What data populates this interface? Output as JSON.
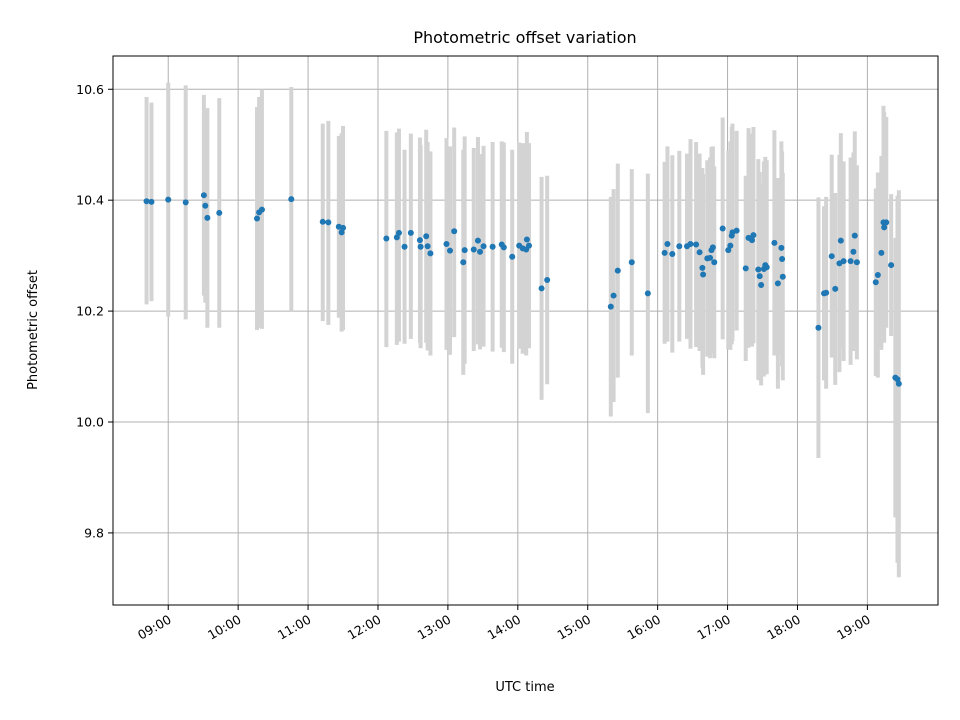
{
  "chart_data": {
    "type": "scatter",
    "title": "Photometric offset variation",
    "xlabel": "UTC time",
    "ylabel": "Photometric offset",
    "xlim_hours": [
      8.21,
      20.01
    ],
    "ylim": [
      9.67,
      10.66
    ],
    "x_ticks": [
      {
        "h": 9,
        "label": "09:00"
      },
      {
        "h": 10,
        "label": "10:00"
      },
      {
        "h": 11,
        "label": "11:00"
      },
      {
        "h": 12,
        "label": "12:00"
      },
      {
        "h": 13,
        "label": "13:00"
      },
      {
        "h": 14,
        "label": "14:00"
      },
      {
        "h": 15,
        "label": "15:00"
      },
      {
        "h": 16,
        "label": "16:00"
      },
      {
        "h": 17,
        "label": "17:00"
      },
      {
        "h": 18,
        "label": "18:00"
      },
      {
        "h": 19,
        "label": "19:00"
      }
    ],
    "y_ticks": [
      {
        "v": 9.8,
        "label": "9.8"
      },
      {
        "v": 10.0,
        "label": "10.0"
      },
      {
        "v": 10.2,
        "label": "10.2"
      },
      {
        "v": 10.4,
        "label": "10.4"
      },
      {
        "v": 10.6,
        "label": "10.6"
      }
    ],
    "grid": true,
    "colors": {
      "point": "#1f77b4",
      "errorbar": "#d3d3d3",
      "grid": "#b0b0b0"
    },
    "points": [
      {
        "h": 8.69,
        "y": 10.398,
        "lo": 10.212,
        "hi": 10.586
      },
      {
        "h": 8.76,
        "y": 10.397,
        "lo": 10.218,
        "hi": 10.576
      },
      {
        "h": 9.0,
        "y": 10.401,
        "lo": 10.19,
        "hi": 10.612
      },
      {
        "h": 9.25,
        "y": 10.396,
        "lo": 10.185,
        "hi": 10.607
      },
      {
        "h": 9.51,
        "y": 10.409,
        "lo": 10.228,
        "hi": 10.59
      },
      {
        "h": 9.53,
        "y": 10.39,
        "lo": 10.215,
        "hi": 10.565
      },
      {
        "h": 9.56,
        "y": 10.368,
        "lo": 10.17,
        "hi": 10.566
      },
      {
        "h": 9.73,
        "y": 10.377,
        "lo": 10.17,
        "hi": 10.584
      },
      {
        "h": 10.27,
        "y": 10.367,
        "lo": 10.166,
        "hi": 10.568
      },
      {
        "h": 10.3,
        "y": 10.378,
        "lo": 10.17,
        "hi": 10.586
      },
      {
        "h": 10.34,
        "y": 10.383,
        "lo": 10.168,
        "hi": 10.6
      },
      {
        "h": 10.76,
        "y": 10.402,
        "lo": 10.2,
        "hi": 10.604
      },
      {
        "h": 11.21,
        "y": 10.361,
        "lo": 10.182,
        "hi": 10.538
      },
      {
        "h": 11.29,
        "y": 10.36,
        "lo": 10.175,
        "hi": 10.543
      },
      {
        "h": 11.44,
        "y": 10.352,
        "lo": 10.188,
        "hi": 10.516
      },
      {
        "h": 11.48,
        "y": 10.342,
        "lo": 10.163,
        "hi": 10.521
      },
      {
        "h": 11.5,
        "y": 10.35,
        "lo": 10.166,
        "hi": 10.534
      },
      {
        "h": 12.12,
        "y": 10.331,
        "lo": 10.135,
        "hi": 10.525
      },
      {
        "h": 12.27,
        "y": 10.333,
        "lo": 10.139,
        "hi": 10.522
      },
      {
        "h": 12.3,
        "y": 10.341,
        "lo": 10.145,
        "hi": 10.529
      },
      {
        "h": 12.38,
        "y": 10.316,
        "lo": 10.141,
        "hi": 10.491
      },
      {
        "h": 12.47,
        "y": 10.341,
        "lo": 10.15,
        "hi": 10.52
      },
      {
        "h": 12.6,
        "y": 10.328,
        "lo": 10.143,
        "hi": 10.513
      },
      {
        "h": 12.61,
        "y": 10.316,
        "lo": 10.133,
        "hi": 10.499
      },
      {
        "h": 12.69,
        "y": 10.335,
        "lo": 10.143,
        "hi": 10.527
      },
      {
        "h": 12.71,
        "y": 10.317,
        "lo": 10.129,
        "hi": 10.505
      },
      {
        "h": 12.75,
        "y": 10.304,
        "lo": 10.12,
        "hi": 10.488
      },
      {
        "h": 12.98,
        "y": 10.321,
        "lo": 10.13,
        "hi": 10.512
      },
      {
        "h": 13.03,
        "y": 10.309,
        "lo": 10.121,
        "hi": 10.497
      },
      {
        "h": 13.09,
        "y": 10.344,
        "lo": 10.153,
        "hi": 10.531
      },
      {
        "h": 13.22,
        "y": 10.288,
        "lo": 10.085,
        "hi": 10.491
      },
      {
        "h": 13.24,
        "y": 10.31,
        "lo": 10.105,
        "hi": 10.515
      },
      {
        "h": 13.37,
        "y": 10.311,
        "lo": 10.128,
        "hi": 10.494
      },
      {
        "h": 13.43,
        "y": 10.327,
        "lo": 10.14,
        "hi": 10.514
      },
      {
        "h": 13.46,
        "y": 10.307,
        "lo": 10.131,
        "hi": 10.483
      },
      {
        "h": 13.51,
        "y": 10.317,
        "lo": 10.136,
        "hi": 10.498
      },
      {
        "h": 13.64,
        "y": 10.316,
        "lo": 10.127,
        "hi": 10.505
      },
      {
        "h": 13.77,
        "y": 10.32,
        "lo": 10.134,
        "hi": 10.506
      },
      {
        "h": 13.8,
        "y": 10.315,
        "lo": 10.126,
        "hi": 10.504
      },
      {
        "h": 13.92,
        "y": 10.298,
        "lo": 10.105,
        "hi": 10.491
      },
      {
        "h": 14.02,
        "y": 10.318,
        "lo": 10.132,
        "hi": 10.504
      },
      {
        "h": 14.07,
        "y": 10.313,
        "lo": 10.123,
        "hi": 10.503
      },
      {
        "h": 14.12,
        "y": 10.311,
        "lo": 10.12,
        "hi": 10.502
      },
      {
        "h": 14.13,
        "y": 10.329,
        "lo": 10.135,
        "hi": 10.523
      },
      {
        "h": 14.16,
        "y": 10.318,
        "lo": 10.133,
        "hi": 10.503
      },
      {
        "h": 14.34,
        "y": 10.241,
        "lo": 10.04,
        "hi": 10.442
      },
      {
        "h": 14.42,
        "y": 10.256,
        "lo": 10.068,
        "hi": 10.444
      },
      {
        "h": 15.33,
        "y": 10.208,
        "lo": 10.01,
        "hi": 10.406
      },
      {
        "h": 15.37,
        "y": 10.228,
        "lo": 10.036,
        "hi": 10.42
      },
      {
        "h": 15.43,
        "y": 10.273,
        "lo": 10.08,
        "hi": 10.466
      },
      {
        "h": 15.63,
        "y": 10.288,
        "lo": 10.12,
        "hi": 10.456
      },
      {
        "h": 15.86,
        "y": 10.232,
        "lo": 10.016,
        "hi": 10.448
      },
      {
        "h": 16.1,
        "y": 10.305,
        "lo": 10.141,
        "hi": 10.469
      },
      {
        "h": 16.14,
        "y": 10.321,
        "lo": 10.145,
        "hi": 10.497
      },
      {
        "h": 16.21,
        "y": 10.303,
        "lo": 10.125,
        "hi": 10.481
      },
      {
        "h": 16.31,
        "y": 10.317,
        "lo": 10.145,
        "hi": 10.489
      },
      {
        "h": 16.42,
        "y": 10.317,
        "lo": 10.15,
        "hi": 10.484
      },
      {
        "h": 16.47,
        "y": 10.321,
        "lo": 10.132,
        "hi": 10.51
      },
      {
        "h": 16.55,
        "y": 10.32,
        "lo": 10.135,
        "hi": 10.505
      },
      {
        "h": 16.6,
        "y": 10.306,
        "lo": 10.128,
        "hi": 10.484
      },
      {
        "h": 16.64,
        "y": 10.278,
        "lo": 10.098,
        "hi": 10.458
      },
      {
        "h": 16.65,
        "y": 10.266,
        "lo": 10.085,
        "hi": 10.447
      },
      {
        "h": 16.71,
        "y": 10.295,
        "lo": 10.118,
        "hi": 10.472
      },
      {
        "h": 16.75,
        "y": 10.296,
        "lo": 10.115,
        "hi": 10.477
      },
      {
        "h": 16.77,
        "y": 10.31,
        "lo": 10.124,
        "hi": 10.496
      },
      {
        "h": 16.79,
        "y": 10.315,
        "lo": 10.133,
        "hi": 10.497
      },
      {
        "h": 16.81,
        "y": 10.288,
        "lo": 10.115,
        "hi": 10.461
      },
      {
        "h": 16.93,
        "y": 10.349,
        "lo": 10.149,
        "hi": 10.549
      },
      {
        "h": 17.01,
        "y": 10.31,
        "lo": 10.131,
        "hi": 10.489
      },
      {
        "h": 17.04,
        "y": 10.318,
        "lo": 10.13,
        "hi": 10.506
      },
      {
        "h": 17.06,
        "y": 10.336,
        "lo": 10.14,
        "hi": 10.532
      },
      {
        "h": 17.07,
        "y": 10.342,
        "lo": 10.146,
        "hi": 10.538
      },
      {
        "h": 17.13,
        "y": 10.345,
        "lo": 10.165,
        "hi": 10.525
      },
      {
        "h": 17.26,
        "y": 10.277,
        "lo": 10.11,
        "hi": 10.444
      },
      {
        "h": 17.3,
        "y": 10.332,
        "lo": 10.134,
        "hi": 10.53
      },
      {
        "h": 17.35,
        "y": 10.328,
        "lo": 10.136,
        "hi": 10.52
      },
      {
        "h": 17.37,
        "y": 10.337,
        "lo": 10.142,
        "hi": 10.532
      },
      {
        "h": 17.44,
        "y": 10.275,
        "lo": 10.076,
        "hi": 10.474
      },
      {
        "h": 17.46,
        "y": 10.263,
        "lo": 10.075,
        "hi": 10.451
      },
      {
        "h": 17.48,
        "y": 10.247,
        "lo": 10.066,
        "hi": 10.428
      },
      {
        "h": 17.52,
        "y": 10.276,
        "lo": 10.082,
        "hi": 10.47
      },
      {
        "h": 17.54,
        "y": 10.283,
        "lo": 10.088,
        "hi": 10.478
      },
      {
        "h": 17.56,
        "y": 10.279,
        "lo": 10.086,
        "hi": 10.472
      },
      {
        "h": 17.67,
        "y": 10.323,
        "lo": 10.12,
        "hi": 10.526
      },
      {
        "h": 17.72,
        "y": 10.25,
        "lo": 10.06,
        "hi": 10.44
      },
      {
        "h": 17.77,
        "y": 10.314,
        "lo": 10.122,
        "hi": 10.506
      },
      {
        "h": 17.78,
        "y": 10.294,
        "lo": 10.1,
        "hi": 10.488
      },
      {
        "h": 17.79,
        "y": 10.262,
        "lo": 10.075,
        "hi": 10.449
      },
      {
        "h": 18.3,
        "y": 10.17,
        "lo": 9.935,
        "hi": 10.405
      },
      {
        "h": 18.38,
        "y": 10.232,
        "lo": 10.075,
        "hi": 10.389
      },
      {
        "h": 18.41,
        "y": 10.233,
        "lo": 10.06,
        "hi": 10.406
      },
      {
        "h": 18.49,
        "y": 10.299,
        "lo": 10.116,
        "hi": 10.482
      },
      {
        "h": 18.54,
        "y": 10.24,
        "lo": 10.067,
        "hi": 10.413
      },
      {
        "h": 18.6,
        "y": 10.286,
        "lo": 10.09,
        "hi": 10.482
      },
      {
        "h": 18.62,
        "y": 10.327,
        "lo": 10.133,
        "hi": 10.521
      },
      {
        "h": 18.66,
        "y": 10.29,
        "lo": 10.11,
        "hi": 10.47
      },
      {
        "h": 18.76,
        "y": 10.29,
        "lo": 10.103,
        "hi": 10.477
      },
      {
        "h": 18.8,
        "y": 10.307,
        "lo": 10.128,
        "hi": 10.486
      },
      {
        "h": 18.82,
        "y": 10.336,
        "lo": 10.148,
        "hi": 10.524
      },
      {
        "h": 18.85,
        "y": 10.288,
        "lo": 10.113,
        "hi": 10.463
      },
      {
        "h": 19.12,
        "y": 10.252,
        "lo": 10.083,
        "hi": 10.421
      },
      {
        "h": 19.15,
        "y": 10.265,
        "lo": 10.08,
        "hi": 10.45
      },
      {
        "h": 19.2,
        "y": 10.305,
        "lo": 10.13,
        "hi": 10.48
      },
      {
        "h": 19.23,
        "y": 10.36,
        "lo": 10.15,
        "hi": 10.57
      },
      {
        "h": 19.24,
        "y": 10.351,
        "lo": 10.143,
        "hi": 10.559
      },
      {
        "h": 19.27,
        "y": 10.36,
        "lo": 10.17,
        "hi": 10.55
      },
      {
        "h": 19.34,
        "y": 10.283,
        "lo": 10.155,
        "hi": 10.411
      },
      {
        "h": 19.4,
        "y": 10.08,
        "lo": 9.828,
        "hi": 10.332
      },
      {
        "h": 19.43,
        "y": 10.077,
        "lo": 9.746,
        "hi": 10.408
      },
      {
        "h": 19.45,
        "y": 10.069,
        "lo": 9.72,
        "hi": 10.418
      }
    ]
  }
}
